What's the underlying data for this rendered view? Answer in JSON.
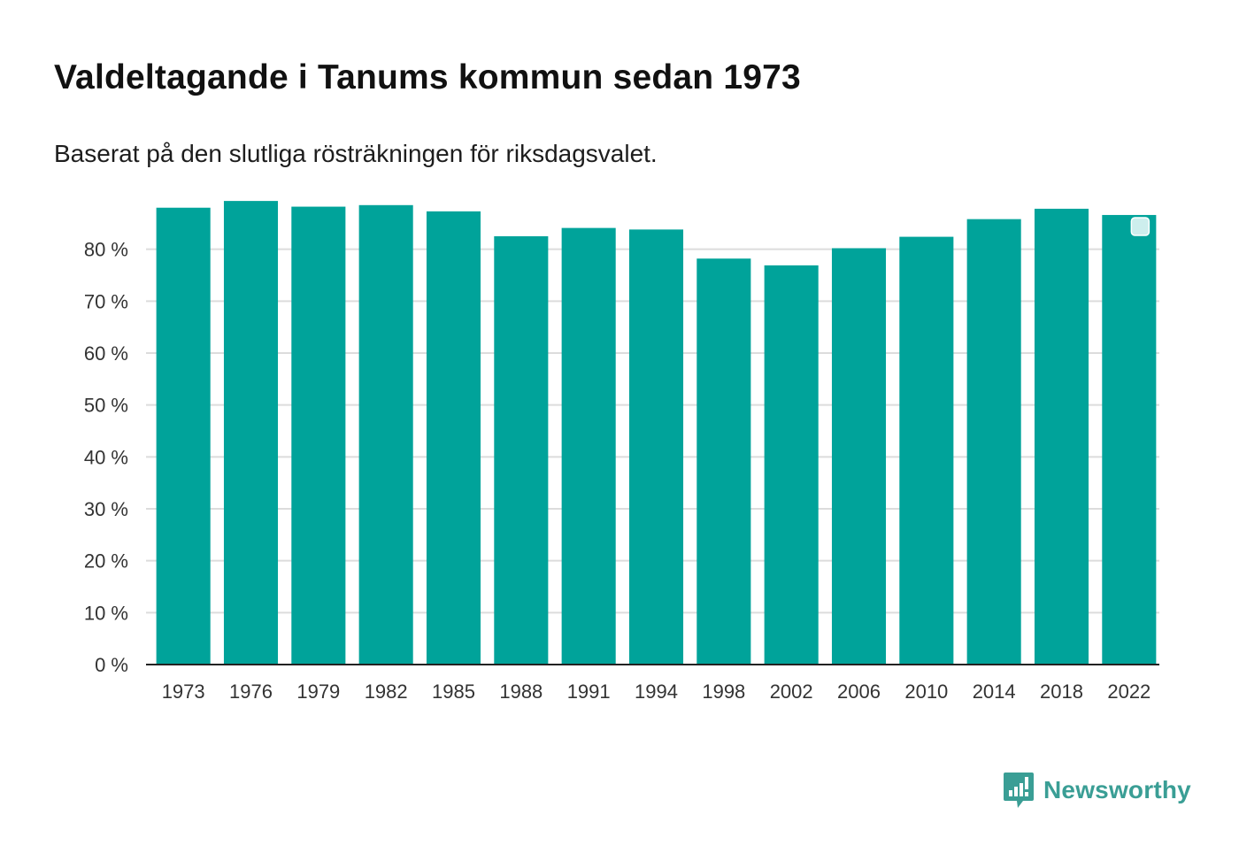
{
  "chart_data": {
    "type": "bar",
    "title": "Valdeltagande i Tanums kommun sedan 1973",
    "subtitle": "Baserat på den slutliga rösträkningen för riksdagsvalet.",
    "xlabel": "",
    "ylabel": "",
    "categories": [
      "1973",
      "1976",
      "1979",
      "1982",
      "1985",
      "1988",
      "1991",
      "1994",
      "1998",
      "2002",
      "2006",
      "2010",
      "2014",
      "2018",
      "2022"
    ],
    "values": [
      88.0,
      89.3,
      88.2,
      88.5,
      87.3,
      82.5,
      84.1,
      83.8,
      78.2,
      76.9,
      80.2,
      82.4,
      85.8,
      87.8,
      86.6
    ],
    "ylim": [
      0,
      90
    ],
    "yticks": [
      0,
      10,
      20,
      30,
      40,
      50,
      60,
      70,
      80
    ],
    "ytick_labels": [
      "0 %",
      "10 %",
      "20 %",
      "30 %",
      "40 %",
      "50 %",
      "60 %",
      "70 %",
      "80 %"
    ],
    "grid": true,
    "legend": "none",
    "bar_color": "#00a39a"
  },
  "brand": {
    "name": "Newsworthy",
    "icon": "newsworthy-logo-icon",
    "color": "#3a9e95"
  }
}
